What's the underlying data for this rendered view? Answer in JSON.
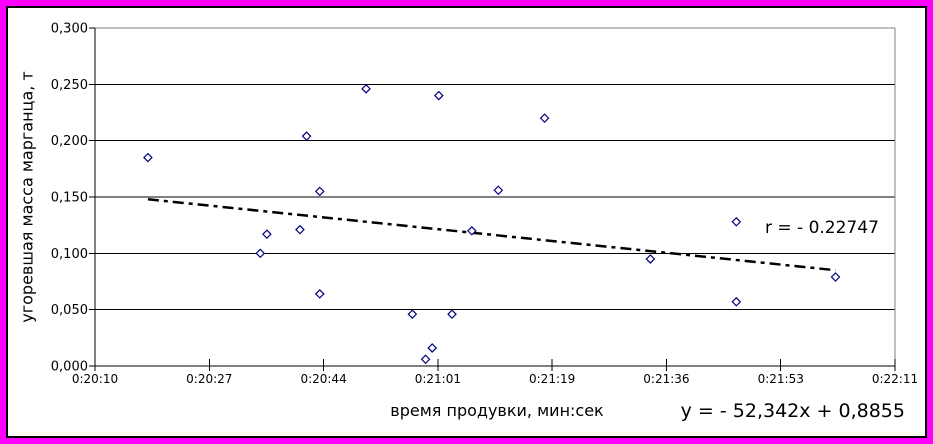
{
  "frame": {
    "outer_border_color": "#FF00FF",
    "inner_border_color": "#000000",
    "background_color": "#FFFFFF"
  },
  "chart_data": {
    "type": "scatter",
    "title": "",
    "xlabel": "время продувки, мин:сек",
    "ylabel": "угоревшая масса марганца, т",
    "grid": true,
    "legend": "none",
    "x_axis": {
      "tick_labels": [
        "0:20:10",
        "0:20:27",
        "0:20:44",
        "0:21:01",
        "0:21:19",
        "0:21:36",
        "0:21:53",
        "0:22:11"
      ],
      "range_time": [
        "0:20:10",
        "0:22:11"
      ]
    },
    "y_axis": {
      "tick_labels": [
        "0,300",
        "0,250",
        "0,200",
        "0,150",
        "0,100",
        "0,050",
        "0,000"
      ],
      "ylim": [
        0,
        0.3
      ],
      "tick_step": 0.05,
      "decimal_separator": ","
    },
    "marker": {
      "shape": "open-diamond",
      "color": "#000080",
      "size": 8
    },
    "points": [
      {
        "time": "0:20:18",
        "value": 0.185
      },
      {
        "time": "0:20:35",
        "value": 0.1
      },
      {
        "time": "0:20:36",
        "value": 0.117
      },
      {
        "time": "0:20:41",
        "value": 0.121
      },
      {
        "time": "0:20:42",
        "value": 0.204
      },
      {
        "time": "0:20:44",
        "value": 0.155
      },
      {
        "time": "0:20:44",
        "value": 0.064
      },
      {
        "time": "0:20:51",
        "value": 0.246
      },
      {
        "time": "0:20:58",
        "value": 0.046
      },
      {
        "time": "0:21:00",
        "value": 0.006
      },
      {
        "time": "0:21:01",
        "value": 0.016
      },
      {
        "time": "0:21:02",
        "value": 0.24
      },
      {
        "time": "0:21:04",
        "value": 0.046
      },
      {
        "time": "0:21:07",
        "value": 0.12
      },
      {
        "time": "0:21:11",
        "value": 0.156
      },
      {
        "time": "0:21:18",
        "value": 0.22
      },
      {
        "time": "0:21:34",
        "value": 0.095
      },
      {
        "time": "0:21:47",
        "value": 0.128
      },
      {
        "time": "0:21:47",
        "value": 0.057
      },
      {
        "time": "0:22:02",
        "value": 0.079
      }
    ],
    "trendline": {
      "style": "dash-dot",
      "color": "#000000",
      "start": {
        "time": "0:20:18",
        "value": 0.148
      },
      "end": {
        "time": "0:22:02",
        "value": 0.085
      }
    },
    "annotations": {
      "r_label": "r = - 0.22747",
      "equation_label": "y = - 52,342x + 0,8855"
    }
  }
}
